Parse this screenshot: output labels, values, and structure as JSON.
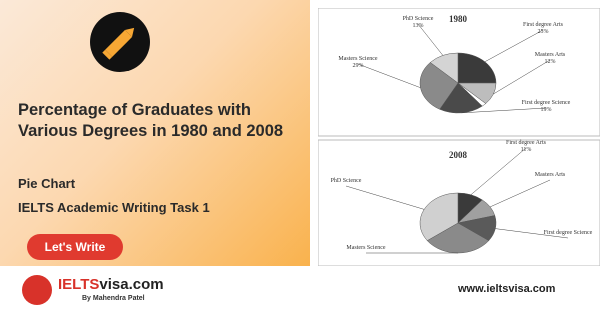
{
  "title": "Percentage of Graduates with Various Degrees in 1980 and 2008",
  "subtitle": "Pie Chart",
  "task": "IELTS Academic Writing Task 1",
  "button": "Let's Write",
  "footer": {
    "brand_a": "IELTS",
    "brand_b": "visa.com",
    "byline": "By Mahendra Patel",
    "url": "www.ieltsvisa.com"
  },
  "chart_data": [
    {
      "type": "pie",
      "title": "1980",
      "categories": [
        "First degree Arts",
        "Masters Arts",
        null,
        "First degree Science",
        "Masters Science",
        "PhD Science"
      ],
      "values": [
        25,
        12,
        2,
        19,
        29,
        13
      ],
      "value_labels": [
        "25%",
        "12%",
        null,
        "19%",
        "29%",
        "13%"
      ],
      "colors": [
        "#3a3a3a",
        "#bdbdbd",
        "#ffffff",
        "#4a4a4a",
        "#8a8a8a",
        "#d4d4d4"
      ]
    },
    {
      "type": "pie",
      "title": "2008",
      "categories": [
        "First degree Arts",
        "Masters Arts",
        "First degree Science",
        "Masters Science",
        "PhD Science"
      ],
      "values": [
        11,
        10,
        14,
        30,
        35
      ],
      "value_labels": [
        "11%",
        null,
        null,
        null,
        null
      ],
      "colors": [
        "#3a3a3a",
        "#a0a0a0",
        "#5a5a5a",
        "#8a8a8a",
        "#d0d0d0"
      ]
    }
  ]
}
